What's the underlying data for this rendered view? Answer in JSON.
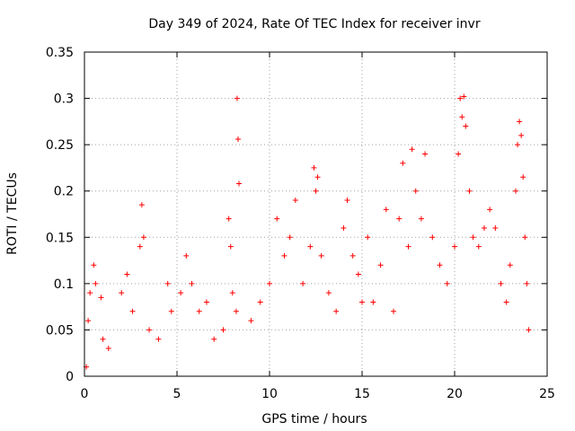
{
  "chart_data": {
    "type": "scatter",
    "title": "Day 349 of 2024, Rate Of TEC Index for receiver invr",
    "xlabel": "GPS time / hours",
    "ylabel": "ROTI / TECUs",
    "xlim": [
      0,
      25
    ],
    "ylim": [
      0,
      0.35
    ],
    "xticks": [
      0,
      5,
      10,
      15,
      20,
      25
    ],
    "xtick_labels": [
      "0",
      "5",
      "10",
      "15",
      "20",
      "25"
    ],
    "yticks": [
      0,
      0.05,
      0.1,
      0.15,
      0.2,
      0.25,
      0.3,
      0.35
    ],
    "ytick_labels": [
      "0",
      "0.05",
      "0.1",
      "0.15",
      "0.2",
      "0.25",
      "0.3",
      "0.35"
    ],
    "grid": true,
    "marker": "+",
    "marker_color": "#ff0000",
    "series": [
      {
        "name": "ROTI",
        "points": [
          [
            0.1,
            0.01
          ],
          [
            0.2,
            0.06
          ],
          [
            0.3,
            0.09
          ],
          [
            0.5,
            0.12
          ],
          [
            0.6,
            0.1
          ],
          [
            0.9,
            0.085
          ],
          [
            1.0,
            0.04
          ],
          [
            1.3,
            0.03
          ],
          [
            2.0,
            0.09
          ],
          [
            2.3,
            0.11
          ],
          [
            2.6,
            0.07
          ],
          [
            3.0,
            0.14
          ],
          [
            3.1,
            0.185
          ],
          [
            3.2,
            0.15
          ],
          [
            3.5,
            0.05
          ],
          [
            4.0,
            0.04
          ],
          [
            4.5,
            0.1
          ],
          [
            4.7,
            0.07
          ],
          [
            5.2,
            0.09
          ],
          [
            5.5,
            0.13
          ],
          [
            5.8,
            0.1
          ],
          [
            6.2,
            0.07
          ],
          [
            6.6,
            0.08
          ],
          [
            7.0,
            0.04
          ],
          [
            7.5,
            0.05
          ],
          [
            7.8,
            0.17
          ],
          [
            7.9,
            0.14
          ],
          [
            8.0,
            0.09
          ],
          [
            8.2,
            0.07
          ],
          [
            8.25,
            0.3
          ],
          [
            8.3,
            0.256
          ],
          [
            8.35,
            0.208
          ],
          [
            9.0,
            0.06
          ],
          [
            9.5,
            0.08
          ],
          [
            10.0,
            0.1
          ],
          [
            10.4,
            0.17
          ],
          [
            10.8,
            0.13
          ],
          [
            11.1,
            0.15
          ],
          [
            11.4,
            0.19
          ],
          [
            11.8,
            0.1
          ],
          [
            12.2,
            0.14
          ],
          [
            12.4,
            0.225
          ],
          [
            12.5,
            0.2
          ],
          [
            12.6,
            0.215
          ],
          [
            12.8,
            0.13
          ],
          [
            13.2,
            0.09
          ],
          [
            13.6,
            0.07
          ],
          [
            14.0,
            0.16
          ],
          [
            14.2,
            0.19
          ],
          [
            14.5,
            0.13
          ],
          [
            14.8,
            0.11
          ],
          [
            15.0,
            0.08
          ],
          [
            15.3,
            0.15
          ],
          [
            15.6,
            0.08
          ],
          [
            16.0,
            0.12
          ],
          [
            16.3,
            0.18
          ],
          [
            16.7,
            0.07
          ],
          [
            17.0,
            0.17
          ],
          [
            17.2,
            0.23
          ],
          [
            17.5,
            0.14
          ],
          [
            17.7,
            0.245
          ],
          [
            17.9,
            0.2
          ],
          [
            18.2,
            0.17
          ],
          [
            18.4,
            0.24
          ],
          [
            18.8,
            0.15
          ],
          [
            19.2,
            0.12
          ],
          [
            19.6,
            0.1
          ],
          [
            20.0,
            0.14
          ],
          [
            20.2,
            0.24
          ],
          [
            20.3,
            0.3
          ],
          [
            20.4,
            0.28
          ],
          [
            20.5,
            0.302
          ],
          [
            20.6,
            0.27
          ],
          [
            20.8,
            0.2
          ],
          [
            21.0,
            0.15
          ],
          [
            21.3,
            0.14
          ],
          [
            21.6,
            0.16
          ],
          [
            21.9,
            0.18
          ],
          [
            22.2,
            0.16
          ],
          [
            22.5,
            0.1
          ],
          [
            22.8,
            0.08
          ],
          [
            23.0,
            0.12
          ],
          [
            23.3,
            0.2
          ],
          [
            23.4,
            0.25
          ],
          [
            23.5,
            0.275
          ],
          [
            23.6,
            0.26
          ],
          [
            23.7,
            0.215
          ],
          [
            23.8,
            0.15
          ],
          [
            23.9,
            0.1
          ],
          [
            24.0,
            0.05
          ]
        ]
      }
    ]
  }
}
